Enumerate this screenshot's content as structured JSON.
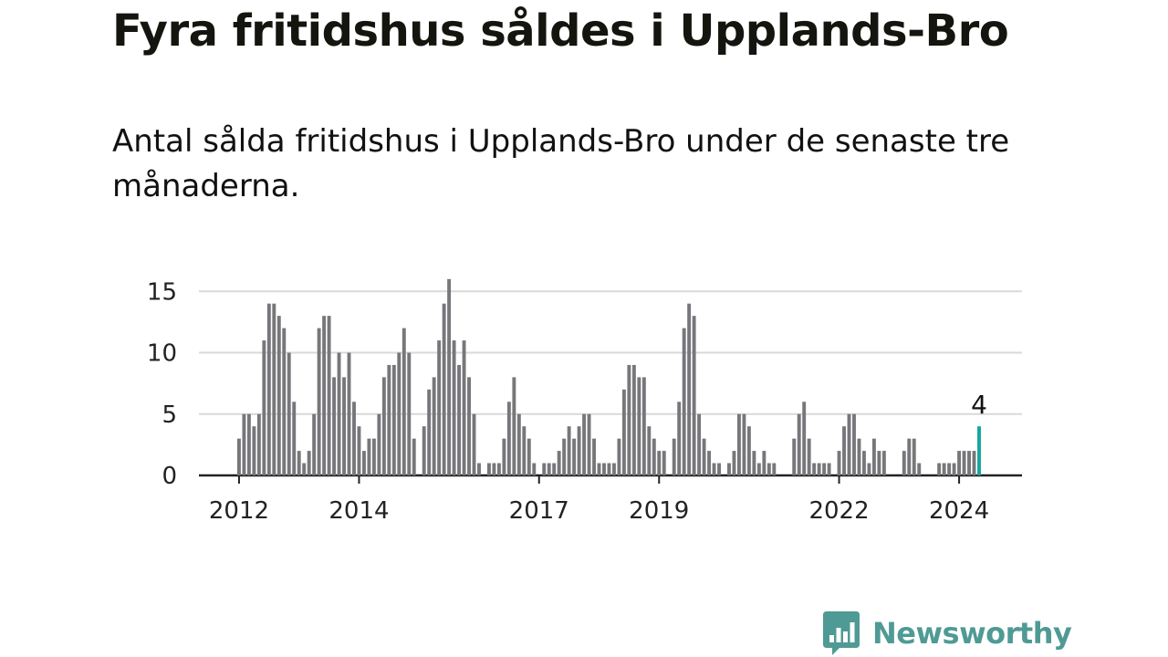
{
  "title": "Fyra fritidshus såldes i Upplands-Bro",
  "subtitle": "Antal sålda fritidshus i Upplands-Bro under de senaste tre månaderna.",
  "brand": {
    "name": "Newsworthy",
    "color": "#4f9a94"
  },
  "colors": {
    "bar": "#77777b",
    "highlight": "#15a59e",
    "grid": "#d9d9d9",
    "axis": "#222222"
  },
  "chart_data": {
    "type": "bar",
    "title": "Fyra fritidshus såldes i Upplands-Bro",
    "xlabel": "",
    "ylabel": "",
    "ylim": [
      0,
      16
    ],
    "yticks": [
      0,
      5,
      10,
      15
    ],
    "xticks": [
      "2012",
      "2014",
      "2017",
      "2019",
      "2022",
      "2024"
    ],
    "series": [
      {
        "name": "Antal sålda fritidshus",
        "values": [
          3,
          5,
          5,
          4,
          5,
          11,
          14,
          14,
          13,
          12,
          10,
          6,
          2,
          1,
          2,
          5,
          12,
          13,
          13,
          8,
          10,
          8,
          10,
          6,
          4,
          2,
          3,
          3,
          5,
          8,
          9,
          9,
          10,
          12,
          10,
          3,
          0,
          4,
          7,
          8,
          11,
          14,
          16,
          11,
          9,
          11,
          8,
          5,
          1,
          0,
          1,
          1,
          1,
          3,
          6,
          8,
          5,
          4,
          3,
          1,
          0,
          1,
          1,
          1,
          2,
          3,
          4,
          3,
          4,
          5,
          5,
          3,
          1,
          1,
          1,
          1,
          3,
          7,
          9,
          9,
          8,
          8,
          4,
          3,
          2,
          2,
          0,
          3,
          6,
          12,
          14,
          13,
          5,
          3,
          2,
          1,
          1,
          0,
          1,
          2,
          5,
          5,
          4,
          2,
          1,
          2,
          1,
          1,
          0,
          0,
          0,
          3,
          5,
          6,
          3,
          1,
          1,
          1,
          1,
          0,
          2,
          4,
          5,
          5,
          3,
          2,
          1,
          3,
          2,
          2,
          0,
          0,
          0,
          2,
          3,
          3,
          1,
          0,
          0,
          0,
          1,
          1,
          1,
          1,
          2,
          2,
          2,
          2,
          4
        ]
      }
    ],
    "highlight": {
      "index": 148,
      "label": "4"
    }
  }
}
